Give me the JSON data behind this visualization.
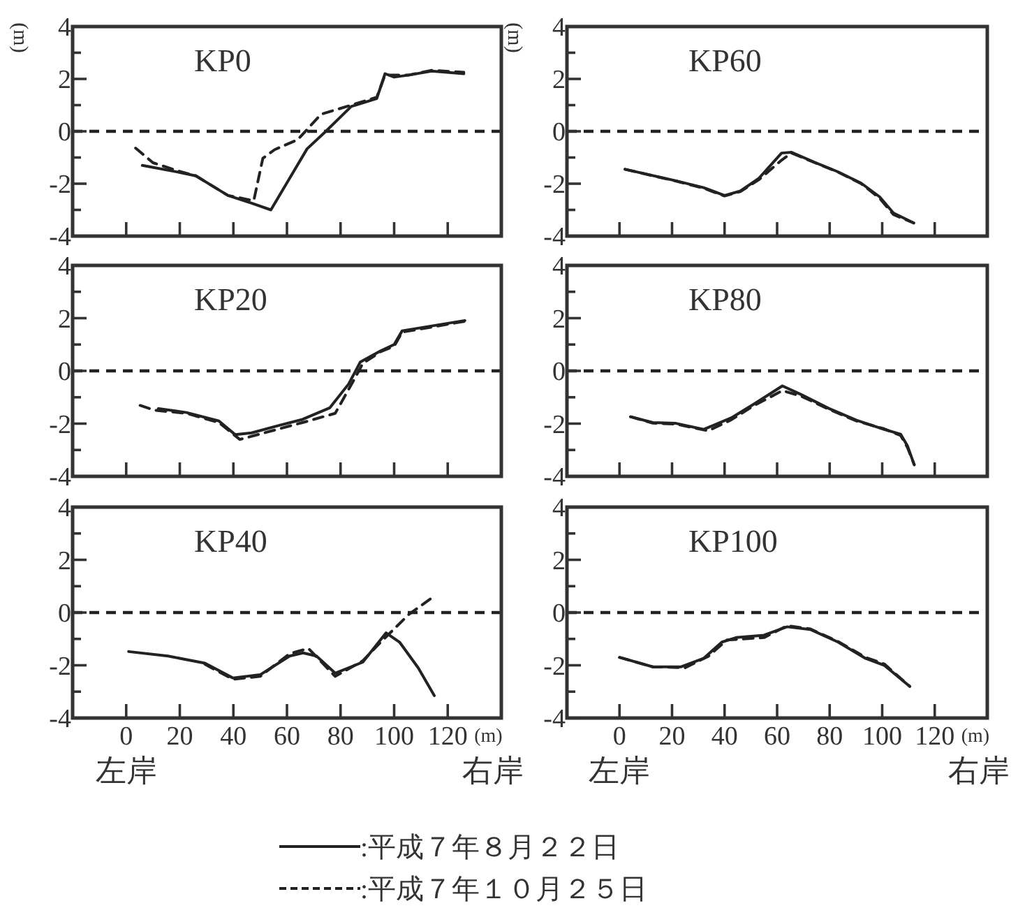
{
  "chart_data": [
    {
      "type": "line",
      "title": "KP0",
      "ylabel": "(m)",
      "xlim": [
        -20,
        140
      ],
      "ylim": [
        -4,
        4
      ],
      "xticks": [
        0,
        20,
        40,
        60,
        80,
        100,
        120
      ],
      "yticks": [
        -4,
        {
          "value": -3,
          "label": null
        },
        -2,
        {
          "value": -1,
          "label": null
        },
        0,
        {
          "value": 1,
          "label": null
        },
        2,
        {
          "value": 3,
          "label": null
        },
        4
      ],
      "tick_labels": "y",
      "ref_lines": [
        {
          "axis": "y",
          "value": 0,
          "line_style": "dashed"
        }
      ],
      "series": [
        {
          "color": "#222222",
          "line_style": "solid",
          "x": [
            6,
            19,
            26,
            38,
            47,
            54,
            67.5,
            74.5,
            84,
            93.5,
            96.6,
            100,
            105.6,
            114,
            126
          ],
          "values": [
            -1.3,
            -1.55,
            -1.7,
            -2.45,
            -2.75,
            -3.0,
            -0.67,
            0,
            0.95,
            1.25,
            2.2,
            2.07,
            2.15,
            2.3,
            2.2
          ]
        },
        {
          "color": "#222222",
          "line_style": "dashed",
          "x": [
            3.5,
            10,
            19,
            26,
            38,
            47.6,
            51,
            55.4,
            64,
            72.7,
            84,
            93.5,
            96.6,
            105.6,
            114,
            126
          ],
          "values": [
            -0.64,
            -1.2,
            -1.5,
            -1.7,
            -2.45,
            -2.65,
            -1.03,
            -0.7,
            -0.32,
            0.65,
            1.0,
            1.3,
            2.15,
            2.15,
            2.33,
            2.25
          ]
        }
      ]
    },
    {
      "type": "line",
      "title": "KP60",
      "ylabel": "(m)",
      "xlim": [
        -20,
        140
      ],
      "ylim": [
        -4,
        4
      ],
      "xticks": [
        0,
        20,
        40,
        60,
        80,
        100,
        120
      ],
      "yticks": [
        -4,
        {
          "value": -3,
          "label": null
        },
        -2,
        {
          "value": -1,
          "label": null
        },
        0,
        {
          "value": 1,
          "label": null
        },
        2,
        {
          "value": 3,
          "label": null
        },
        4
      ],
      "tick_labels": "y",
      "ref_lines": [
        {
          "axis": "y",
          "value": 0,
          "line_style": "dashed"
        }
      ],
      "series": [
        {
          "color": "#222222",
          "line_style": "solid",
          "x": [
            2.1,
            21.5,
            32,
            40,
            46,
            53,
            61.7,
            65.5,
            74.4,
            83,
            92,
            99,
            104.3,
            112
          ],
          "values": [
            -1.45,
            -1.89,
            -2.15,
            -2.45,
            -2.28,
            -1.8,
            -0.83,
            -0.8,
            -1.19,
            -1.54,
            -1.98,
            -2.5,
            -3.12,
            -3.5
          ]
        },
        {
          "color": "#222222",
          "line_style": "dashed",
          "x": [
            2.1,
            21.5,
            32,
            40,
            46,
            53,
            61.7,
            65.5,
            74.4,
            83,
            92,
            99,
            104.3,
            112
          ],
          "values": [
            -1.45,
            -1.9,
            -2.17,
            -2.47,
            -2.3,
            -1.85,
            -1.1,
            -0.83,
            -1.2,
            -1.55,
            -2.0,
            -2.55,
            -3.18,
            -3.5
          ]
        }
      ]
    },
    {
      "type": "line",
      "title": "KP20",
      "xlim": [
        -20,
        140
      ],
      "ylim": [
        -4,
        4
      ],
      "xticks": [
        0,
        20,
        40,
        60,
        80,
        100,
        120
      ],
      "yticks": [
        -4,
        {
          "value": -3,
          "label": null
        },
        -2,
        {
          "value": -1,
          "label": null
        },
        0,
        {
          "value": 1,
          "label": null
        },
        2,
        {
          "value": 3,
          "label": null
        },
        4
      ],
      "tick_labels": "y",
      "ref_lines": [
        {
          "axis": "y",
          "value": 0,
          "line_style": "dashed"
        }
      ],
      "series": [
        {
          "color": "#222222",
          "line_style": "solid",
          "x": [
            12,
            22.5,
            34.6,
            40.7,
            46.8,
            57,
            65.8,
            76,
            83,
            87.4,
            95,
            100,
            103,
            126.4
          ],
          "values": [
            -1.43,
            -1.58,
            -1.9,
            -2.42,
            -2.35,
            -2.07,
            -1.84,
            -1.4,
            -0.5,
            0.34,
            0.76,
            1.0,
            1.52,
            1.91
          ]
        },
        {
          "color": "#222222",
          "line_style": "dashed",
          "x": [
            5.2,
            10.4,
            22.5,
            34.6,
            42.4,
            57,
            65.8,
            78,
            85,
            88.3,
            95,
            100,
            103,
            126.4
          ],
          "values": [
            -1.31,
            -1.49,
            -1.61,
            -1.96,
            -2.6,
            -2.2,
            -1.96,
            -1.61,
            -0.34,
            0.28,
            0.73,
            0.94,
            1.47,
            1.88
          ]
        }
      ]
    },
    {
      "type": "line",
      "title": "KP80",
      "xlim": [
        -20,
        140
      ],
      "ylim": [
        -4,
        4
      ],
      "xticks": [
        0,
        20,
        40,
        60,
        80,
        100,
        120
      ],
      "yticks": [
        -4,
        {
          "value": -3,
          "label": null
        },
        -2,
        {
          "value": -1,
          "label": null
        },
        0,
        {
          "value": 1,
          "label": null
        },
        2,
        {
          "value": 3,
          "label": null
        },
        4
      ],
      "tick_labels": "y",
      "ref_lines": [
        {
          "axis": "y",
          "value": 0,
          "line_style": "dashed"
        }
      ],
      "series": [
        {
          "color": "#222222",
          "line_style": "solid",
          "x": [
            4.2,
            12.7,
            21.5,
            32,
            42.6,
            51.5,
            62,
            69,
            79.6,
            90.2,
            100.8,
            107,
            109.6,
            112.2
          ],
          "values": [
            -1.74,
            -1.96,
            -1.99,
            -2.22,
            -1.78,
            -1.24,
            -0.57,
            -0.89,
            -1.42,
            -1.87,
            -2.22,
            -2.4,
            -2.84,
            -3.56
          ]
        },
        {
          "color": "#222222",
          "line_style": "dashed",
          "x": [
            4.2,
            12.7,
            21.5,
            33.8,
            42.6,
            51.5,
            62,
            69,
            79.6,
            90.2,
            100.8,
            107,
            109.6,
            112.2
          ],
          "values": [
            -1.74,
            -1.98,
            -2.02,
            -2.27,
            -1.85,
            -1.3,
            -0.75,
            -0.95,
            -1.45,
            -1.9,
            -2.2,
            -2.45,
            -2.9,
            -3.56
          ]
        }
      ]
    },
    {
      "type": "line",
      "title": "KP40",
      "xlabel": "(m)",
      "xlim": [
        -20,
        140
      ],
      "ylim": [
        -4,
        4
      ],
      "xticks": [
        0,
        20,
        40,
        60,
        80,
        100,
        120
      ],
      "yticks": [
        -4,
        {
          "value": -3,
          "label": null
        },
        -2,
        {
          "value": -1,
          "label": null
        },
        0,
        {
          "value": 1,
          "label": null
        },
        2,
        {
          "value": 3,
          "label": null
        },
        4
      ],
      "ref_lines": [
        {
          "axis": "y",
          "value": 0,
          "line_style": "dashed"
        }
      ],
      "annotations": [
        "左岸",
        "右岸"
      ],
      "series": [
        {
          "color": "#222222",
          "line_style": "solid",
          "x": [
            0.9,
            15.6,
            29.4,
            39.8,
            50,
            61,
            66,
            71,
            78,
            88.3,
            97,
            102,
            109,
            115
          ],
          "values": [
            -1.48,
            -1.65,
            -1.92,
            -2.48,
            -2.36,
            -1.65,
            -1.53,
            -1.65,
            -2.3,
            -1.88,
            -0.77,
            -1.12,
            -2.1,
            -3.15
          ]
        },
        {
          "color": "#222222",
          "line_style": "dashed",
          "x": [
            29.4,
            39.8,
            50,
            61,
            68,
            78,
            88.3,
            95,
            105.6,
            115.2
          ],
          "values": [
            -1.96,
            -2.53,
            -2.42,
            -1.56,
            -1.36,
            -2.42,
            -1.83,
            -1.12,
            -0.06,
            0.64
          ]
        }
      ]
    },
    {
      "type": "line",
      "title": "KP100",
      "xlabel": "(m)",
      "xlim": [
        -20,
        140
      ],
      "ylim": [
        -4,
        4
      ],
      "xticks": [
        0,
        20,
        40,
        60,
        80,
        100,
        120
      ],
      "yticks": [
        -4,
        {
          "value": -3,
          "label": null
        },
        -2,
        {
          "value": -1,
          "label": null
        },
        0,
        {
          "value": 1,
          "label": null
        },
        2,
        {
          "value": 3,
          "label": null
        },
        4
      ],
      "ref_lines": [
        {
          "axis": "y",
          "value": 0,
          "line_style": "dashed"
        }
      ],
      "annotations": [
        "左岸",
        "右岸"
      ],
      "legend": "bottom",
      "series": [
        {
          "name": ":平成７年８月２２日",
          "color": "#222222",
          "line_style": "solid",
          "x": [
            0,
            12.7,
            23.3,
            32,
            39,
            44.4,
            55,
            63.8,
            72.6,
            83.2,
            93.7,
            100.8,
            110.5
          ],
          "values": [
            -1.7,
            -2.06,
            -2.06,
            -1.74,
            -1.12,
            -0.95,
            -0.86,
            -0.54,
            -0.64,
            -1.12,
            -1.74,
            -2.0,
            -2.8
          ]
        },
        {
          "name": ":平成７年１０月２５日",
          "color": "#222222",
          "line_style": "dashed",
          "x": [
            0,
            12.7,
            25,
            33.8,
            40.9,
            55,
            63.8,
            72.6,
            83.2,
            93.7,
            100.8,
            110.5
          ],
          "values": [
            -1.7,
            -2.06,
            -2.09,
            -1.66,
            -1.04,
            -0.95,
            -0.5,
            -0.62,
            -1.1,
            -1.7,
            -1.95,
            -2.8
          ]
        }
      ]
    }
  ]
}
